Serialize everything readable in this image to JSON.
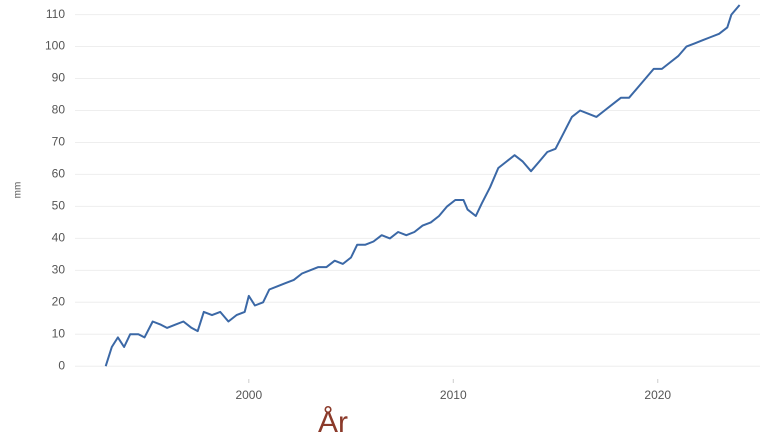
{
  "chart_data": {
    "type": "line",
    "x_label": "År",
    "y_label": "mm",
    "x": [
      1993.0,
      1993.3,
      1993.6,
      1993.9,
      1994.2,
      1994.6,
      1994.9,
      1995.3,
      1995.7,
      1996.0,
      1996.4,
      1996.8,
      1997.2,
      1997.5,
      1997.8,
      1998.2,
      1998.6,
      1999.0,
      1999.4,
      1999.8,
      2000.0,
      2000.3,
      2000.7,
      2001.0,
      2001.4,
      2001.8,
      2002.2,
      2002.6,
      2003.0,
      2003.4,
      2003.8,
      2004.2,
      2004.6,
      2005.0,
      2005.3,
      2005.7,
      2006.1,
      2006.5,
      2006.9,
      2007.3,
      2007.7,
      2008.1,
      2008.5,
      2008.9,
      2009.3,
      2009.7,
      2010.1,
      2010.5,
      2010.7,
      2011.1,
      2011.4,
      2011.8,
      2012.2,
      2012.6,
      2013.0,
      2013.4,
      2013.8,
      2014.2,
      2014.6,
      2015.0,
      2015.4,
      2015.8,
      2016.2,
      2016.6,
      2017.0,
      2017.4,
      2017.8,
      2018.2,
      2018.6,
      2019.0,
      2019.4,
      2019.8,
      2020.2,
      2020.6,
      2021.0,
      2021.4,
      2021.8,
      2022.2,
      2022.6,
      2023.0,
      2023.4,
      2023.6,
      2024.0
    ],
    "series": [
      {
        "color": "#3b68a6",
        "values": [
          0,
          6,
          9,
          6,
          10,
          10,
          9,
          14,
          13,
          12,
          13,
          14,
          12,
          11,
          17,
          16,
          17,
          14,
          16,
          17,
          22,
          19,
          20,
          24,
          25,
          26,
          27,
          29,
          30,
          31,
          31,
          33,
          32,
          34,
          38,
          38,
          39,
          41,
          40,
          42,
          41,
          42,
          44,
          45,
          47,
          50,
          52,
          52,
          49,
          47,
          51,
          56,
          62,
          64,
          66,
          64,
          61,
          64,
          67,
          68,
          73,
          78,
          80,
          79,
          78,
          80,
          82,
          84,
          84,
          87,
          90,
          93,
          93,
          95,
          97,
          100,
          101,
          102,
          103,
          104,
          106,
          110,
          113
        ]
      }
    ],
    "xlim": [
      1991.5,
      2025
    ],
    "xticks": [
      2000,
      2010,
      2020
    ],
    "ylim": [
      -4,
      113
    ],
    "yticks": [
      0,
      10,
      20,
      30,
      40,
      50,
      60,
      70,
      80,
      90,
      100,
      110
    ],
    "grid": true
  }
}
